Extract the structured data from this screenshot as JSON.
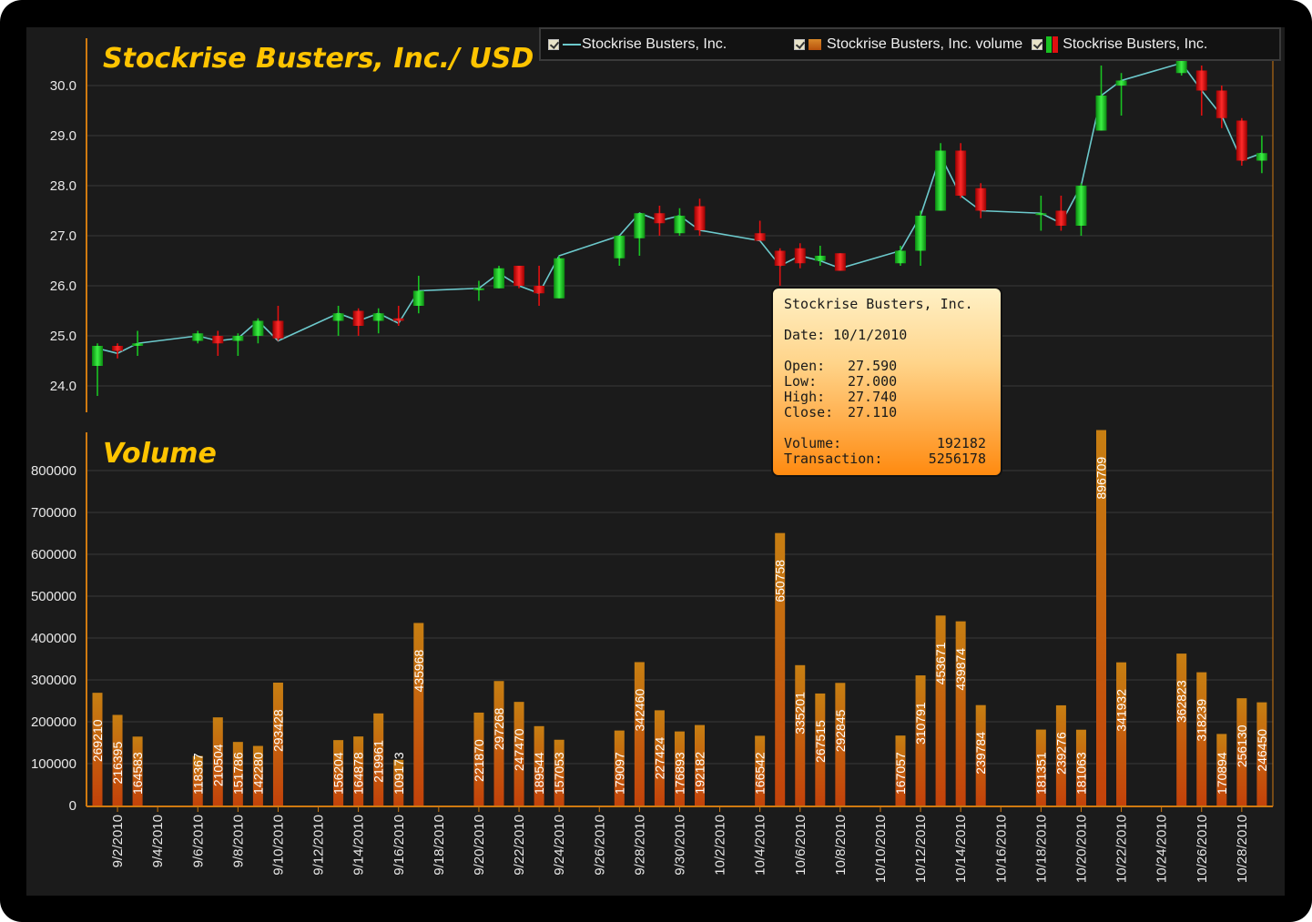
{
  "chart_data": {
    "type": "candlestick",
    "title": "Stockrise Busters, Inc./ USD",
    "volume_title": "Volume",
    "price_ticks": [
      "24.0",
      "25.0",
      "26.0",
      "27.0",
      "28.0",
      "29.0",
      "30.0"
    ],
    "price_tick_values": [
      24,
      25,
      26,
      27,
      28,
      29,
      30
    ],
    "ylim": [
      23.35,
      30.85
    ],
    "volume_ticks": [
      "0",
      "100000",
      "200000",
      "300000",
      "400000",
      "500000",
      "600000",
      "700000",
      "800000"
    ],
    "volume_tick_values": [
      0,
      100000,
      200000,
      300000,
      400000,
      500000,
      600000,
      700000,
      800000
    ],
    "volume_ylim": [
      0,
      900000
    ],
    "x_ticks": [
      "9/2/2010",
      "9/4/2010",
      "9/6/2010",
      "9/8/2010",
      "9/10/2010",
      "9/12/2010",
      "9/14/2010",
      "9/16/2010",
      "9/18/2010",
      "9/20/2010",
      "9/22/2010",
      "9/24/2010",
      "9/26/2010",
      "9/28/2010",
      "9/30/2010",
      "10/2/2010",
      "10/4/2010",
      "10/6/2010",
      "10/8/2010",
      "10/10/2010",
      "10/12/2010",
      "10/14/2010",
      "10/16/2010",
      "10/18/2010",
      "10/20/2010",
      "10/22/2010",
      "10/24/2010",
      "10/26/2010",
      "10/28/2010"
    ],
    "x_tick_days": [
      2,
      4,
      6,
      8,
      10,
      12,
      14,
      16,
      18,
      20,
      22,
      24,
      26,
      28,
      30,
      32,
      34,
      36,
      38,
      40,
      42,
      44,
      46,
      48,
      50,
      52,
      54,
      56,
      58
    ],
    "candles": [
      {
        "date": "9/1/2010",
        "open": 24.4,
        "high": 24.85,
        "low": 23.8,
        "close": 24.8,
        "volume": 269210
      },
      {
        "date": "9/2/2010",
        "open": 24.8,
        "high": 24.85,
        "low": 24.55,
        "close": 24.7,
        "volume": 216395
      },
      {
        "date": "9/3/2010",
        "open": 24.8,
        "high": 25.1,
        "low": 24.6,
        "close": 24.85,
        "volume": 164583
      },
      {
        "date": "9/6/2010",
        "open": 24.9,
        "high": 25.1,
        "low": 24.85,
        "close": 25.05,
        "volume": 118367
      },
      {
        "date": "9/7/2010",
        "open": 25.0,
        "high": 25.1,
        "low": 24.6,
        "close": 24.85,
        "volume": 210504
      },
      {
        "date": "9/8/2010",
        "open": 24.9,
        "high": 25.05,
        "low": 24.6,
        "close": 25.0,
        "volume": 151786
      },
      {
        "date": "9/9/2010",
        "open": 25.0,
        "high": 25.35,
        "low": 24.85,
        "close": 25.3,
        "volume": 142280
      },
      {
        "date": "9/10/2010",
        "open": 25.3,
        "high": 25.6,
        "low": 24.9,
        "close": 24.95,
        "volume": 293428
      },
      {
        "date": "9/13/2010",
        "open": 25.3,
        "high": 25.6,
        "low": 25.0,
        "close": 25.45,
        "volume": 156204
      },
      {
        "date": "9/14/2010",
        "open": 25.5,
        "high": 25.55,
        "low": 25.0,
        "close": 25.2,
        "volume": 164878
      },
      {
        "date": "9/15/2010",
        "open": 25.3,
        "high": 25.55,
        "low": 25.05,
        "close": 25.45,
        "volume": 219961
      },
      {
        "date": "9/16/2010",
        "open": 25.35,
        "high": 25.6,
        "low": 25.2,
        "close": 25.3,
        "volume": 109173
      },
      {
        "date": "9/17/2010",
        "open": 25.6,
        "high": 26.2,
        "low": 25.45,
        "close": 25.9,
        "volume": 435968
      },
      {
        "date": "9/20/2010",
        "open": 25.95,
        "high": 26.1,
        "low": 25.7,
        "close": 25.95,
        "volume": 221870
      },
      {
        "date": "9/21/2010",
        "open": 25.95,
        "high": 26.4,
        "low": 25.95,
        "close": 26.35,
        "volume": 297268
      },
      {
        "date": "9/22/2010",
        "open": 26.4,
        "high": 26.4,
        "low": 25.95,
        "close": 26.0,
        "volume": 247470
      },
      {
        "date": "9/23/2010",
        "open": 26.0,
        "high": 26.4,
        "low": 25.6,
        "close": 25.85,
        "volume": 189544
      },
      {
        "date": "9/24/2010",
        "open": 25.75,
        "high": 26.6,
        "low": 25.75,
        "close": 26.55,
        "volume": 157053
      },
      {
        "date": "9/27/2010",
        "open": 26.55,
        "high": 27.0,
        "low": 26.4,
        "close": 27.0,
        "volume": 179097
      },
      {
        "date": "9/28/2010",
        "open": 26.95,
        "high": 27.45,
        "low": 26.6,
        "close": 27.45,
        "volume": 342460
      },
      {
        "date": "9/29/2010",
        "open": 27.45,
        "high": 27.6,
        "low": 27.0,
        "close": 27.25,
        "volume": 227424
      },
      {
        "date": "9/30/2010",
        "open": 27.05,
        "high": 27.55,
        "low": 27.0,
        "close": 27.4,
        "volume": 176893
      },
      {
        "date": "10/1/2010",
        "open": 27.59,
        "high": 27.74,
        "low": 27.0,
        "close": 27.11,
        "volume": 192182
      },
      {
        "date": "10/4/2010",
        "open": 27.05,
        "high": 27.3,
        "low": 26.9,
        "close": 26.9,
        "volume": 166542
      },
      {
        "date": "10/5/2010",
        "open": 26.7,
        "high": 26.75,
        "low": 26.0,
        "close": 26.4,
        "volume": 650758
      },
      {
        "date": "10/6/2010",
        "open": 26.75,
        "high": 26.85,
        "low": 26.35,
        "close": 26.45,
        "volume": 335201
      },
      {
        "date": "10/7/2010",
        "open": 26.5,
        "high": 26.8,
        "low": 26.4,
        "close": 26.6,
        "volume": 267515
      },
      {
        "date": "10/8/2010",
        "open": 26.65,
        "high": 26.65,
        "low": 26.3,
        "close": 26.3,
        "volume": 292845
      },
      {
        "date": "10/11/2010",
        "open": 26.45,
        "high": 26.8,
        "low": 26.4,
        "close": 26.7,
        "volume": 167057
      },
      {
        "date": "10/12/2010",
        "open": 26.7,
        "high": 27.5,
        "low": 26.4,
        "close": 27.4,
        "volume": 310791
      },
      {
        "date": "10/13/2010",
        "open": 27.5,
        "high": 28.85,
        "low": 27.5,
        "close": 28.7,
        "volume": 453671
      },
      {
        "date": "10/14/2010",
        "open": 28.7,
        "high": 28.85,
        "low": 27.75,
        "close": 27.8,
        "volume": 439874
      },
      {
        "date": "10/15/2010",
        "open": 27.95,
        "high": 28.05,
        "low": 27.35,
        "close": 27.5,
        "volume": 239784
      },
      {
        "date": "10/18/2010",
        "open": 27.45,
        "high": 27.8,
        "low": 27.1,
        "close": 27.45,
        "volume": 181351
      },
      {
        "date": "10/19/2010",
        "open": 27.5,
        "high": 27.8,
        "low": 27.1,
        "close": 27.2,
        "volume": 239276
      },
      {
        "date": "10/20/2010",
        "open": 27.2,
        "high": 28.05,
        "low": 27.0,
        "close": 28.0,
        "volume": 181063
      },
      {
        "date": "10/21/2010",
        "open": 29.1,
        "high": 30.4,
        "low": 29.1,
        "close": 29.8,
        "volume": 896709
      },
      {
        "date": "10/22/2010",
        "open": 30.0,
        "high": 30.25,
        "low": 29.4,
        "close": 30.1,
        "volume": 341932
      },
      {
        "date": "10/25/2010",
        "open": 30.25,
        "high": 30.6,
        "low": 30.2,
        "close": 30.5,
        "volume": 362823
      },
      {
        "date": "10/26/2010",
        "open": 30.3,
        "high": 30.4,
        "low": 29.4,
        "close": 29.9,
        "volume": 318239
      },
      {
        "date": "10/27/2010",
        "open": 29.9,
        "high": 30.0,
        "low": 29.15,
        "close": 29.35,
        "volume": 170894
      },
      {
        "date": "10/28/2010",
        "open": 29.3,
        "high": 29.35,
        "low": 28.4,
        "close": 28.5,
        "volume": 256130
      },
      {
        "date": "10/29/2010",
        "open": 28.5,
        "high": 29.0,
        "low": 28.25,
        "close": 28.65,
        "volume": 246450
      }
    ],
    "line_points": [
      {
        "date": "9/1/2010",
        "close": 24.75
      },
      {
        "date": "9/2/2010",
        "close": 24.65
      },
      {
        "date": "9/3/2010",
        "close": 24.85
      },
      {
        "date": "9/6/2010",
        "close": 25.0
      },
      {
        "date": "9/7/2010",
        "close": 24.9
      },
      {
        "date": "9/8/2010",
        "close": 24.95
      },
      {
        "date": "9/9/2010",
        "close": 25.3
      },
      {
        "date": "9/10/2010",
        "close": 24.9
      },
      {
        "date": "9/13/2010",
        "close": 25.45
      },
      {
        "date": "9/14/2010",
        "close": 25.3
      },
      {
        "date": "9/15/2010",
        "close": 25.45
      },
      {
        "date": "9/16/2010",
        "close": 25.25
      },
      {
        "date": "9/17/2010",
        "close": 25.9
      },
      {
        "date": "9/20/2010",
        "close": 25.95
      },
      {
        "date": "9/21/2010",
        "close": 26.25
      },
      {
        "date": "9/22/2010",
        "close": 26.0
      },
      {
        "date": "9/23/2010",
        "close": 25.85
      },
      {
        "date": "9/24/2010",
        "close": 26.6
      },
      {
        "date": "9/27/2010",
        "close": 27.0
      },
      {
        "date": "9/28/2010",
        "close": 27.45
      },
      {
        "date": "9/29/2010",
        "close": 27.3
      },
      {
        "date": "9/30/2010",
        "close": 27.4
      },
      {
        "date": "10/1/2010",
        "close": 27.11
      },
      {
        "date": "10/4/2010",
        "close": 26.9
      },
      {
        "date": "10/5/2010",
        "close": 26.4
      },
      {
        "date": "10/6/2010",
        "close": 26.6
      },
      {
        "date": "10/7/2010",
        "close": 26.5
      },
      {
        "date": "10/8/2010",
        "close": 26.35
      },
      {
        "date": "10/11/2010",
        "close": 26.7
      },
      {
        "date": "10/12/2010",
        "close": 27.4
      },
      {
        "date": "10/13/2010",
        "close": 28.6
      },
      {
        "date": "10/14/2010",
        "close": 27.8
      },
      {
        "date": "10/15/2010",
        "close": 27.5
      },
      {
        "date": "10/18/2010",
        "close": 27.45
      },
      {
        "date": "10/19/2010",
        "close": 27.25
      },
      {
        "date": "10/20/2010",
        "close": 28.0
      },
      {
        "date": "10/21/2010",
        "close": 29.8
      },
      {
        "date": "10/22/2010",
        "close": 30.1
      },
      {
        "date": "10/25/2010",
        "close": 30.45
      },
      {
        "date": "10/26/2010",
        "close": 29.9
      },
      {
        "date": "10/27/2010",
        "close": 29.4
      },
      {
        "date": "10/28/2010",
        "close": 28.5
      },
      {
        "date": "10/29/2010",
        "close": 28.65
      }
    ],
    "grid": true,
    "legend_position": "top-right",
    "colors": {
      "up": "#19c222",
      "down": "#e01010",
      "line": "#6cc9cc",
      "volume_top": "#c97a12",
      "volume_bottom": "#c2400a",
      "axis": "#d07a10",
      "grid": "#3a3a3a"
    }
  },
  "legend": {
    "items": [
      {
        "label": "Stockrise Busters, Inc."
      },
      {
        "label": "Stockrise Busters, Inc. volume"
      },
      {
        "label": "Stockrise Busters, Inc."
      }
    ]
  },
  "tooltip": {
    "name": "Stockrise Busters, Inc.",
    "date_label": "Date:",
    "date": "10/1/2010",
    "open_label": "Open:",
    "open": "27.590",
    "low_label": "Low:",
    "low": "27.000",
    "high_label": "High:",
    "high": "27.740",
    "close_label": "Close:",
    "close": "27.110",
    "volume_label": "Volume:",
    "volume": "192182",
    "transaction_label": "Transaction:",
    "transaction": "5256178"
  }
}
